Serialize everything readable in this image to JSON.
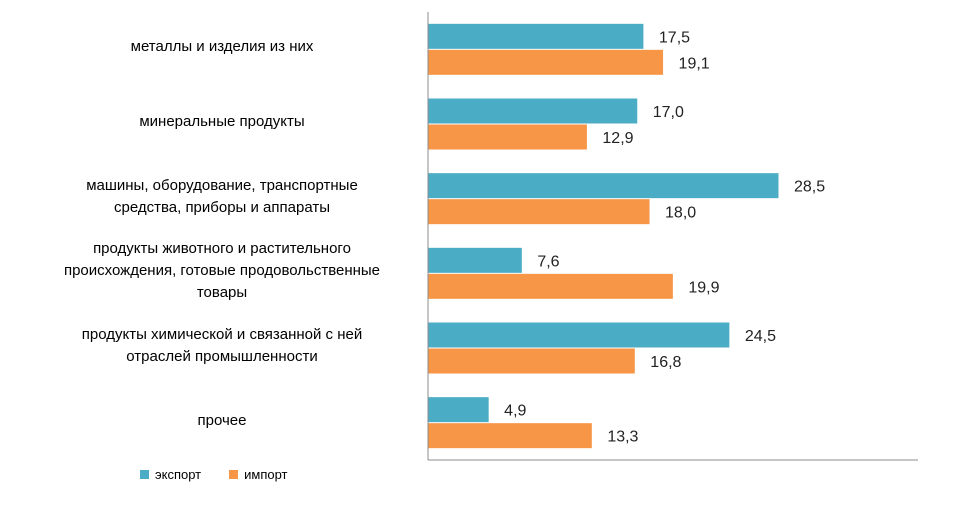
{
  "chart_data": {
    "type": "bar",
    "orientation": "horizontal",
    "categories": [
      "металлы и изделия из них",
      "минеральные продукты",
      "машины, оборудование, транспортные средства, приборы и аппараты",
      "продукты животного и растительного происхождения, готовые продовольственные товары",
      "продукты химической и связанной с ней отраслей промышленности",
      "прочее"
    ],
    "category_lines": [
      [
        "металлы и изделия из них"
      ],
      [
        "минеральные продукты"
      ],
      [
        "машины, оборудование, транспортные",
        "средства, приборы и аппараты"
      ],
      [
        "продукты животного и растительного",
        "происхождения, готовые продовольственные",
        "товары"
      ],
      [
        "продукты химической и связанной с ней",
        "отраслей промышленности"
      ],
      [
        "прочее"
      ]
    ],
    "series": [
      {
        "name": "экспорт",
        "color": "#4BACC6",
        "values": [
          17.5,
          17.0,
          28.5,
          7.6,
          24.5,
          4.9
        ],
        "labels": [
          "17,5",
          "17,0",
          "28,5",
          "7,6",
          "24,5",
          "4,9"
        ]
      },
      {
        "name": "импорт",
        "color": "#F79646",
        "values": [
          19.1,
          12.9,
          18.0,
          19.9,
          16.8,
          13.3
        ],
        "labels": [
          "19,1",
          "12,9",
          "18,0",
          "19,9",
          "16,8",
          "13,3"
        ]
      }
    ],
    "xlim": [
      0,
      40
    ],
    "title": "",
    "xlabel": "",
    "ylabel": "",
    "grid": false,
    "legend_position": "bottom-left"
  }
}
